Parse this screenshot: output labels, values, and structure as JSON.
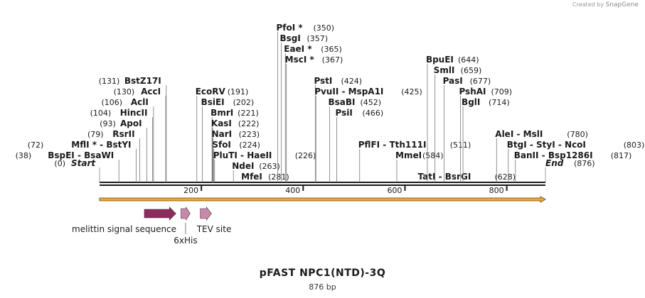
{
  "credit": {
    "prefix": "Created by",
    "brand": "SnapGene"
  },
  "sequence": {
    "name": "pFAST NPC1(NTD)-3Q",
    "length_label": "876 bp",
    "length": 876
  },
  "ruler": {
    "ticks": [
      200,
      400,
      600,
      800
    ],
    "tick_labels": [
      "200",
      "400",
      "600",
      "800"
    ]
  },
  "start_label": {
    "pos": 0,
    "pos_text": "(0)",
    "name": "Start"
  },
  "end_label": {
    "pos": 876,
    "pos_text": "(876)",
    "name": "End"
  },
  "sites": [
    {
      "pos": 38,
      "pos_text": "(38)",
      "name": "BspEI  -  BsaWI"
    },
    {
      "pos": 72,
      "pos_text": "(72)",
      "name": "MflI *  -  BstYI"
    },
    {
      "pos": 79,
      "pos_text": "(79)",
      "name": "RsrII"
    },
    {
      "pos": 93,
      "pos_text": "(93)",
      "name": "ApoI"
    },
    {
      "pos": 104,
      "pos_text": "(104)",
      "name": "HincII"
    },
    {
      "pos": 106,
      "pos_text": "(106)",
      "name": "AclI"
    },
    {
      "pos": 130,
      "pos_text": "(130)",
      "name": "AccI"
    },
    {
      "pos": 131,
      "pos_text": "(131)",
      "name": "BstZ17I"
    },
    {
      "pos": 191,
      "pos_text": "(191)",
      "name": "EcoRV"
    },
    {
      "pos": 202,
      "pos_text": "(202)",
      "name": "BsiEI"
    },
    {
      "pos": 221,
      "pos_text": "(221)",
      "name": "BmrI"
    },
    {
      "pos": 222,
      "pos_text": "(222)",
      "name": "KasI"
    },
    {
      "pos": 223,
      "pos_text": "(223)",
      "name": "NarI"
    },
    {
      "pos": 224,
      "pos_text": "(224)",
      "name": "SfoI"
    },
    {
      "pos": 226,
      "pos_text": "(226)",
      "name": "PluTI  -  HaeII"
    },
    {
      "pos": 263,
      "pos_text": "(263)",
      "name": "NdeI"
    },
    {
      "pos": 281,
      "pos_text": "(281)",
      "name": "MfeI"
    },
    {
      "pos": 350,
      "pos_text": "(350)",
      "name": "PfoI *"
    },
    {
      "pos": 357,
      "pos_text": "(357)",
      "name": "BsgI"
    },
    {
      "pos": 365,
      "pos_text": "(365)",
      "name": "EaeI *"
    },
    {
      "pos": 367,
      "pos_text": "(367)",
      "name": "MscI *"
    },
    {
      "pos": 424,
      "pos_text": "(424)",
      "name": "PstI"
    },
    {
      "pos": 425,
      "pos_text": "(425)",
      "name": "PvuII  -  MspA1I"
    },
    {
      "pos": 452,
      "pos_text": "(452)",
      "name": "BsaBI"
    },
    {
      "pos": 466,
      "pos_text": "(466)",
      "name": "PsiI"
    },
    {
      "pos": 511,
      "pos_text": "(511)",
      "name": "PflFI  -  Tth111I"
    },
    {
      "pos": 584,
      "pos_text": "(584)",
      "name": "MmeI"
    },
    {
      "pos": 628,
      "pos_text": "(628)",
      "name": "TatI  -  BsrGI"
    },
    {
      "pos": 644,
      "pos_text": "(644)",
      "name": "BpuEI"
    },
    {
      "pos": 659,
      "pos_text": "(659)",
      "name": "SmlI"
    },
    {
      "pos": 677,
      "pos_text": "(677)",
      "name": "PasI"
    },
    {
      "pos": 709,
      "pos_text": "(709)",
      "name": "PshAI"
    },
    {
      "pos": 714,
      "pos_text": "(714)",
      "name": "BglI"
    },
    {
      "pos": 780,
      "pos_text": "(780)",
      "name": "AleI  -  MslI"
    },
    {
      "pos": 803,
      "pos_text": "(803)",
      "name": "BtgI  -  StyI  -  NcoI"
    },
    {
      "pos": 817,
      "pos_text": "(817)",
      "name": "BanII  -  Bsp1286I"
    }
  ],
  "features": [
    {
      "name": "melittin signal sequence",
      "start": 88,
      "end": 150,
      "color": "#8b2d5c"
    },
    {
      "name": "6xHis",
      "start": 160,
      "end": 178,
      "color": "#c48aa8"
    },
    {
      "name": "TEV site",
      "start": 198,
      "end": 220,
      "color": "#c48aa8"
    }
  ],
  "orf": {
    "color": "#f0a830",
    "stroke": "#6b4a10"
  }
}
